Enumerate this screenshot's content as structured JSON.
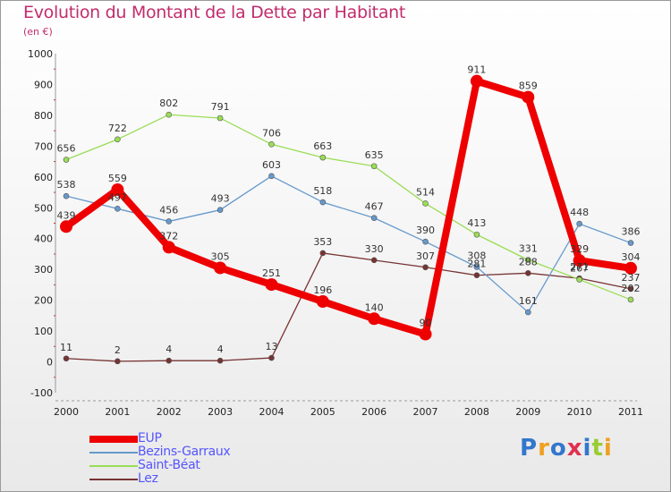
{
  "chart_data": {
    "type": "line",
    "title": "Evolution du Montant de la Dette par Habitant",
    "unit": "(en €)",
    "xlabel": "",
    "ylabel": "",
    "x": [
      "2000",
      "2001",
      "2002",
      "2003",
      "2004",
      "2005",
      "2006",
      "2007",
      "2008",
      "2009",
      "2010",
      "2011"
    ],
    "ylim": [
      -100,
      1000
    ],
    "yticks": [
      -100,
      0,
      100,
      200,
      300,
      400,
      500,
      600,
      700,
      800,
      900,
      1000
    ],
    "grid": false,
    "legend_position": "bottom-left",
    "series": [
      {
        "name": "EUP",
        "color": "#ee0000",
        "values": [
          439,
          559,
          372,
          305,
          251,
          196,
          140,
          90,
          911,
          859,
          329,
          304
        ],
        "labels": [
          "439",
          "559",
          "372",
          "305",
          "251",
          "196",
          "140",
          "90",
          "911",
          "859",
          "329",
          "304"
        ]
      },
      {
        "name": "Bezins-Garraux",
        "color": "#6699cc",
        "values": [
          538,
          497,
          456,
          493,
          603,
          518,
          467,
          390,
          308,
          161,
          448,
          386
        ],
        "labels": [
          "538",
          "497",
          "456",
          "493",
          "603",
          "518",
          "467",
          "390",
          "308",
          "161",
          "448",
          "386"
        ]
      },
      {
        "name": "Saint-Béat",
        "color": "#99dd55",
        "values": [
          656,
          722,
          802,
          791,
          706,
          663,
          635,
          514,
          413,
          331,
          267,
          202
        ],
        "labels": [
          "656",
          "722",
          "802",
          "791",
          "706",
          "663",
          "635",
          "514",
          "413",
          "331",
          "267",
          "202"
        ]
      },
      {
        "name": "Lez",
        "color": "#773333",
        "values": [
          11,
          2,
          4,
          4,
          13,
          353,
          330,
          307,
          281,
          288,
          271,
          237
        ],
        "labels": [
          "11",
          "2",
          "4",
          "4",
          "13",
          "353",
          "330",
          "307",
          "281",
          "288",
          "271",
          "237"
        ]
      }
    ]
  },
  "brand": {
    "text": "Proxiti",
    "colors": [
      "#3377cc",
      "#f0a020",
      "#3377cc",
      "#e03050",
      "#3377cc",
      "#99cc33",
      "#f0a020"
    ]
  }
}
